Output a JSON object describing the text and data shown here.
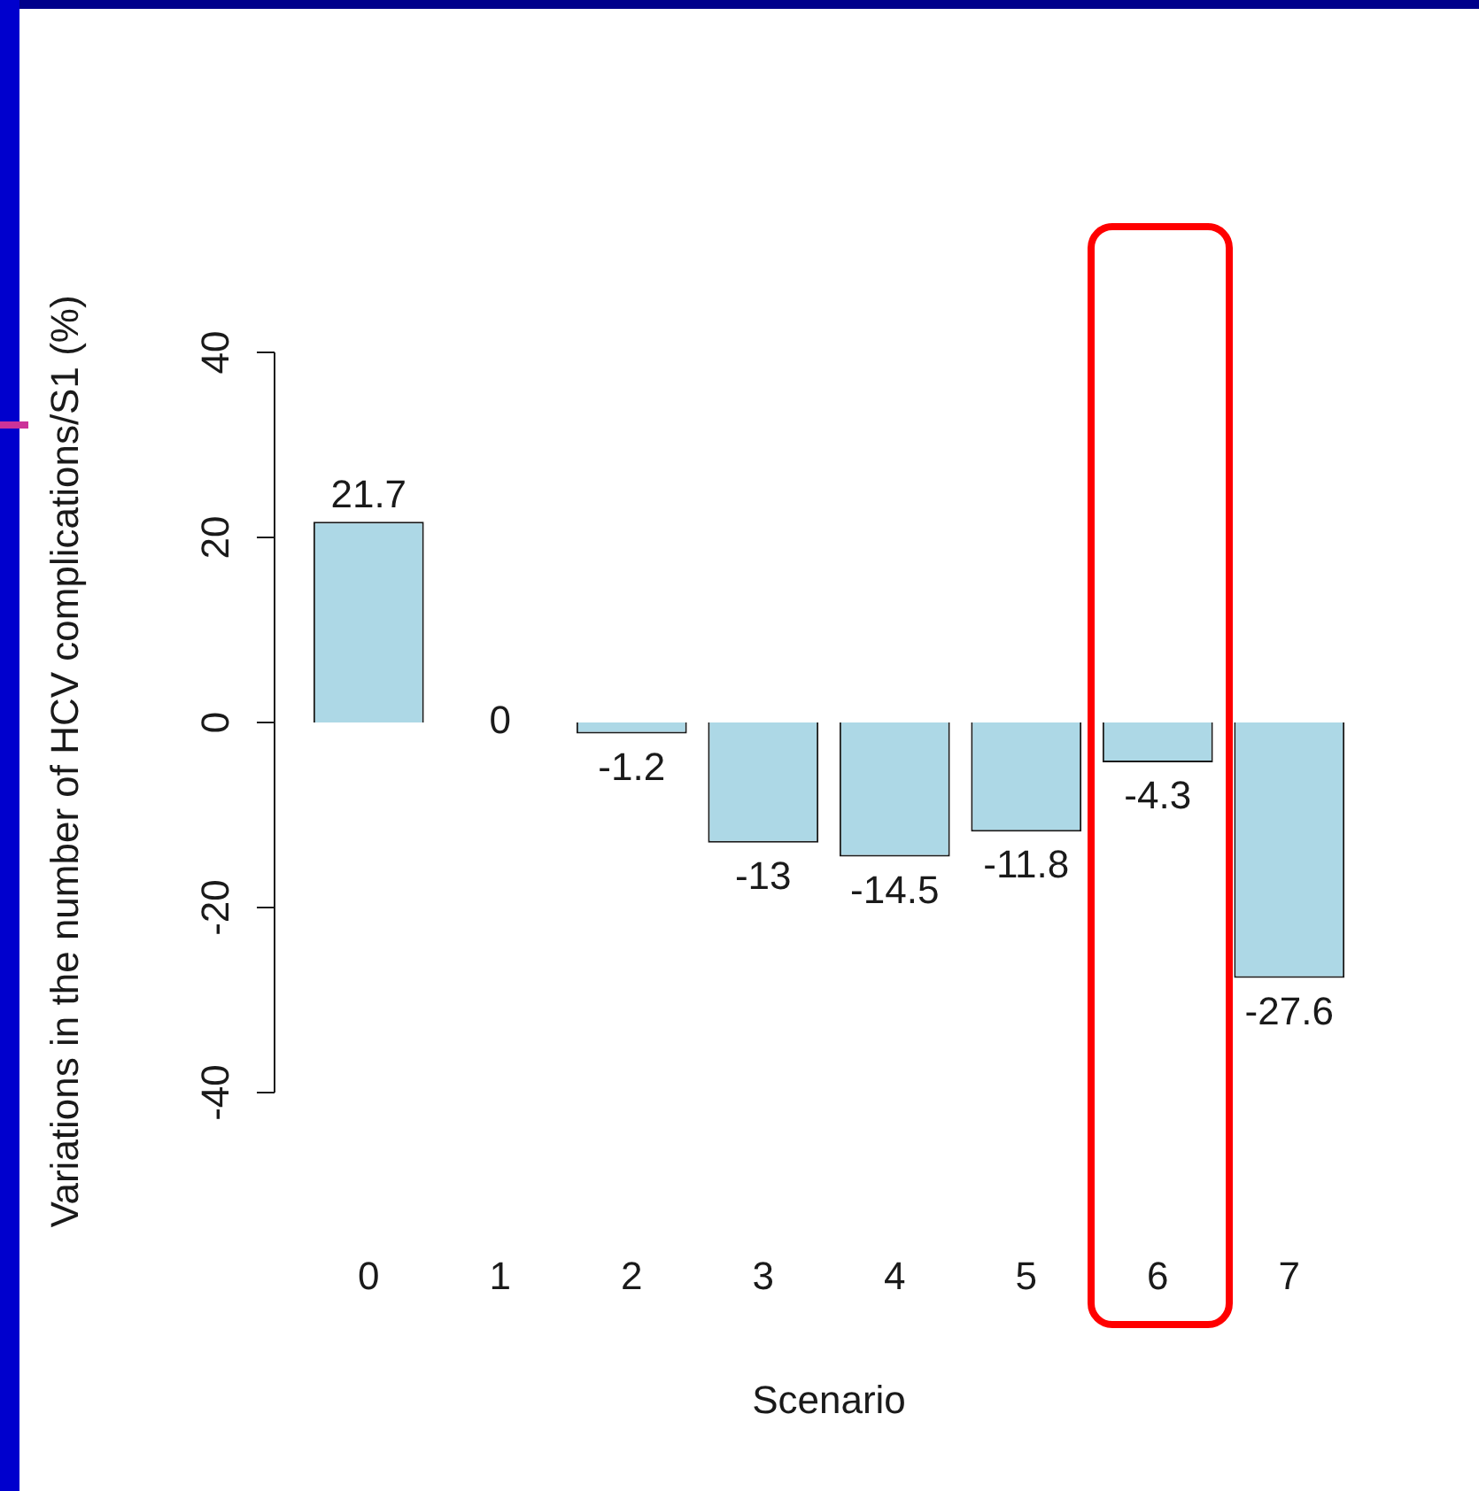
{
  "chart_data": {
    "type": "bar",
    "xlabel": "Scenario",
    "ylabel": "Variations in the number of HCV complications/S1 (%)",
    "categories": [
      "0",
      "1",
      "2",
      "3",
      "4",
      "5",
      "6",
      "7"
    ],
    "values": [
      21.7,
      0,
      -1.2,
      -13,
      -14.5,
      -11.8,
      -4.3,
      -27.6
    ],
    "color": "#add8e6",
    "ylim": [
      -40,
      40
    ],
    "yticks": [
      -40,
      -20,
      0,
      20,
      40
    ],
    "legend": false,
    "data_labels": true
  }
}
